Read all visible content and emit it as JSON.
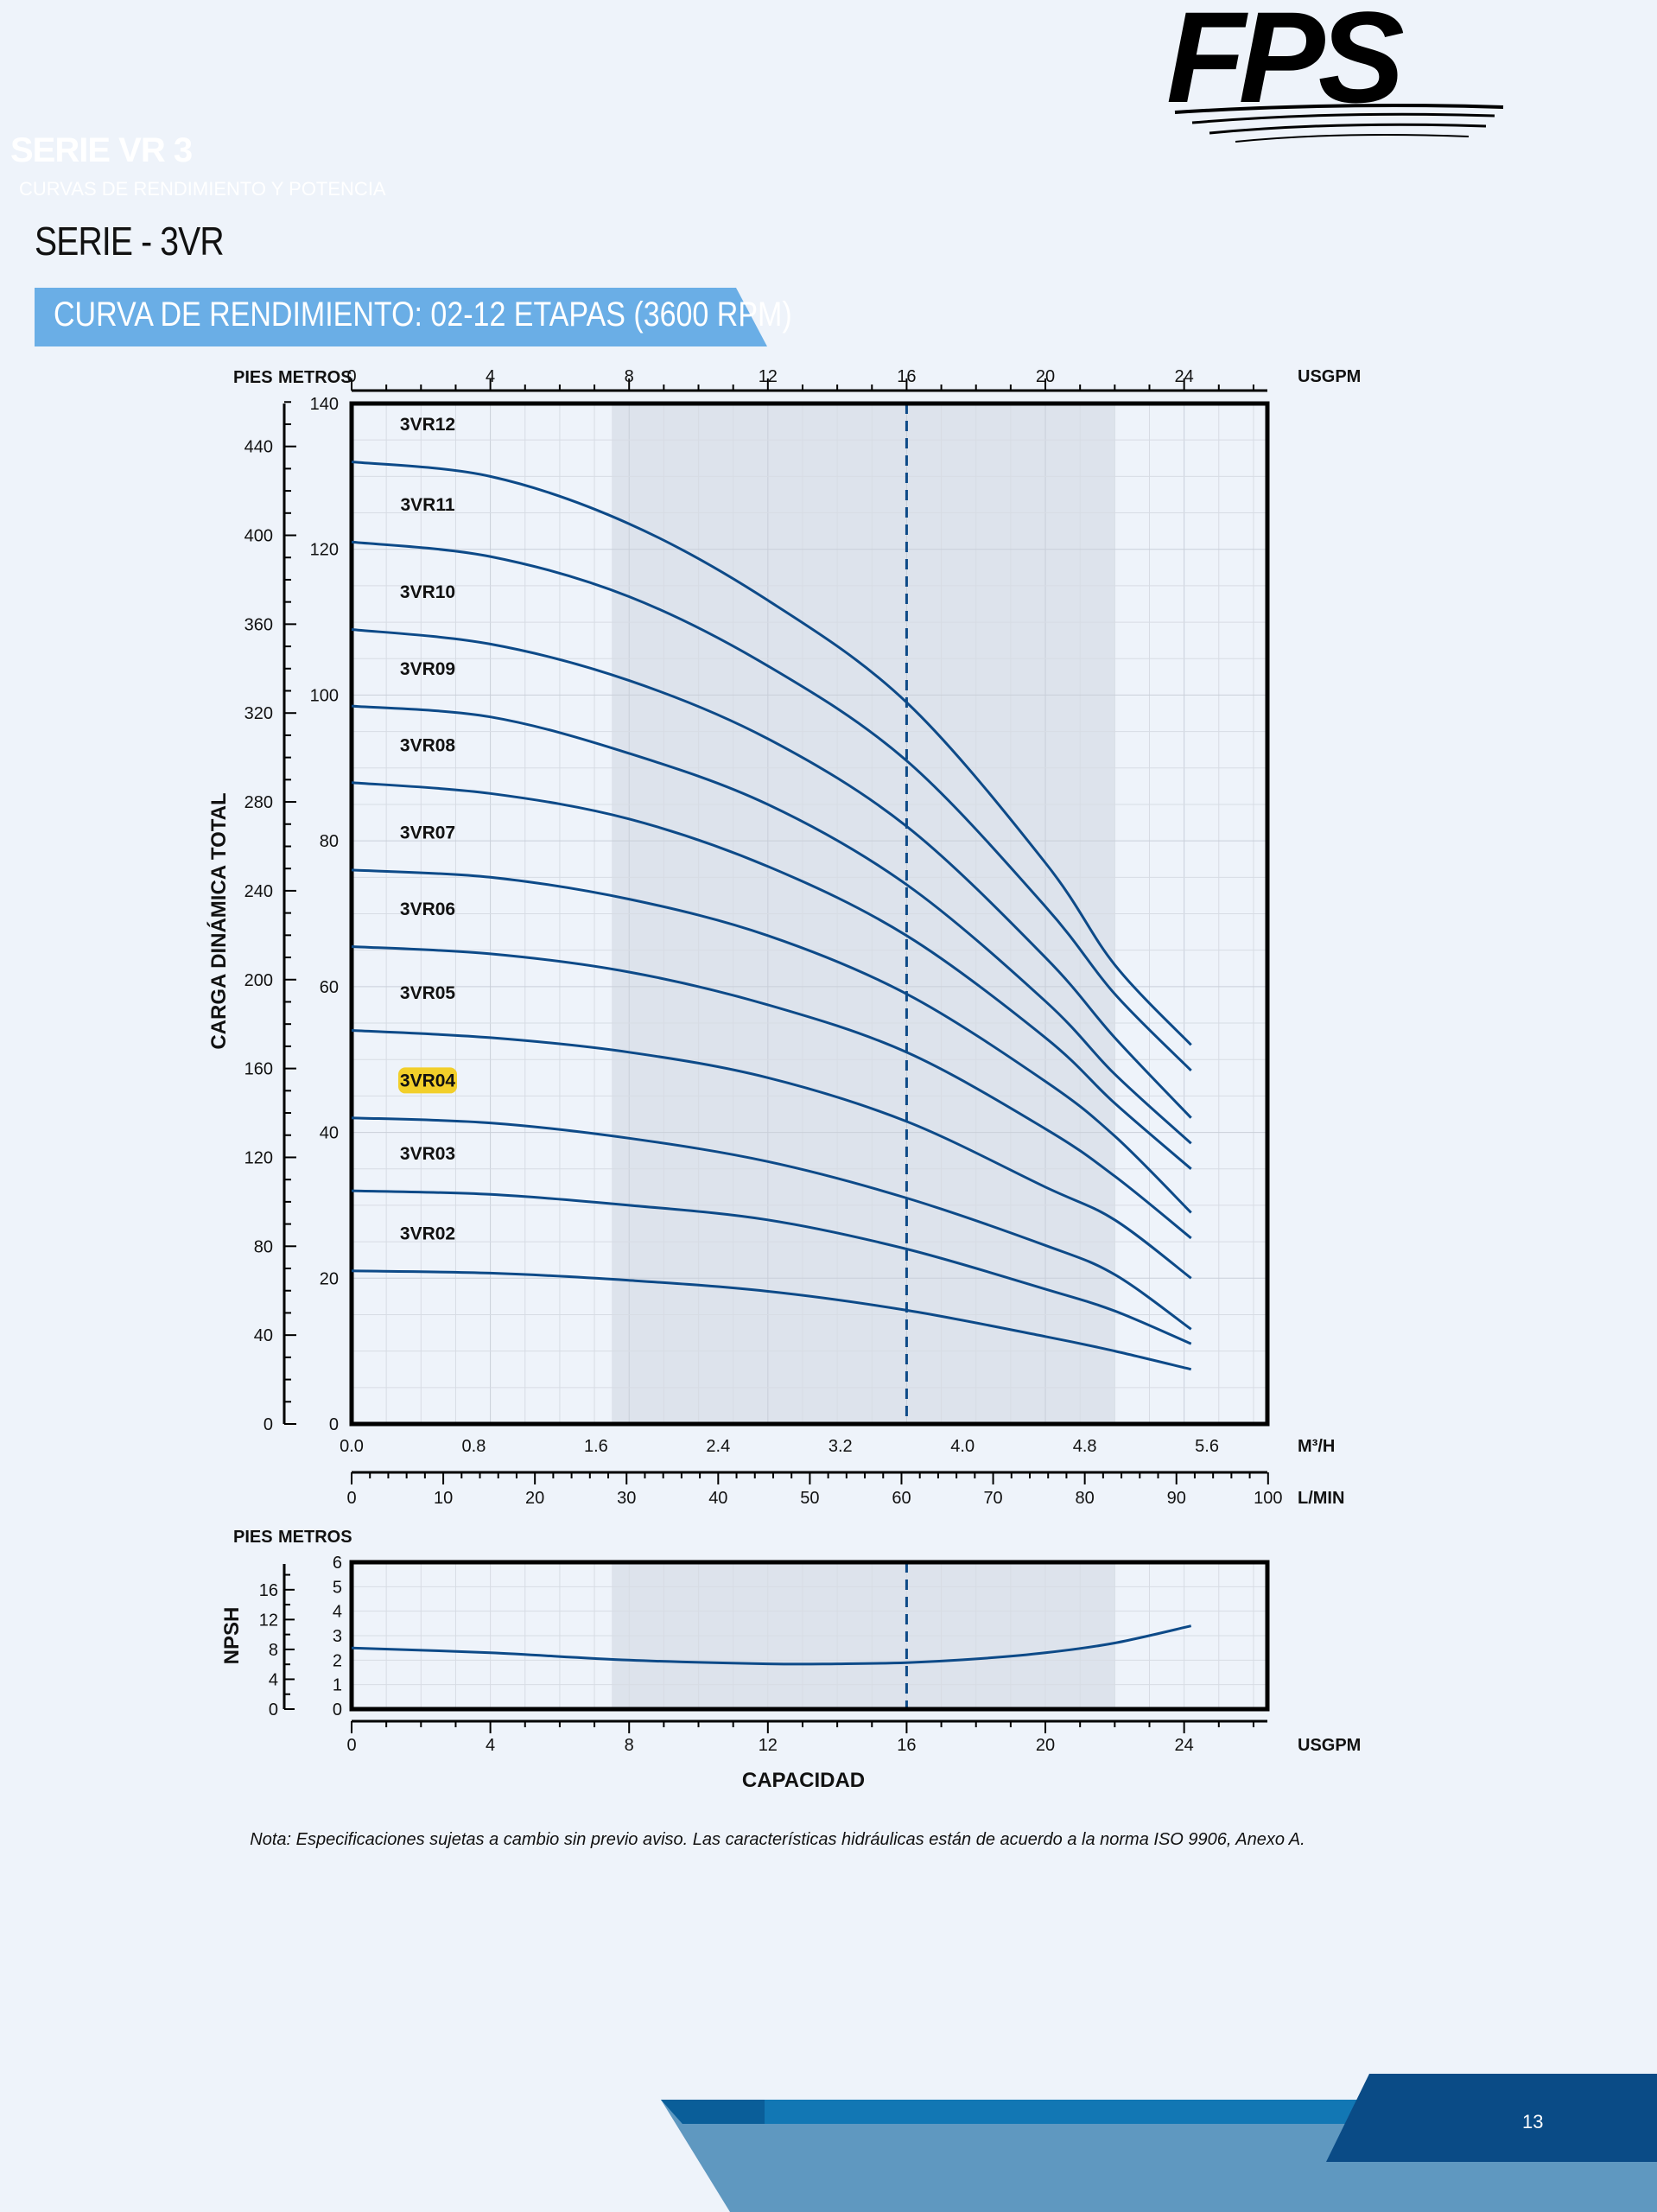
{
  "header": {
    "logo_text": "FPS",
    "series": "SERIE VR 3",
    "subseries": "CURVAS DE RENDIMIENTO Y POTENCIA",
    "page_title": "SERIE - 3VR",
    "banner": "CURVA DE RENDIMIENTO: 02-12 ETAPAS (3600 RPM)"
  },
  "footer": {
    "note": "Nota: Especificaciones sujetas a cambio sin previo aviso. Las características hidráulicas están de acuerdo a la norma ISO 9906, Anexo A.",
    "page_number": "13"
  },
  "colors": {
    "curve": "#0d4a88",
    "band": "#dde3ec",
    "banner": "#6aaee6",
    "highlight": "#f2cf2a",
    "footer_dark": "#0a4b86",
    "footer_mid": "#1277b4"
  },
  "chart_data": [
    {
      "type": "line",
      "title": "",
      "ylabel": "CARGA DINÁMICA TOTAL",
      "axes": {
        "top_unit": "USGPM",
        "top_ticks": [
          "0",
          "4",
          "8",
          "12",
          "16",
          "20",
          "24"
        ],
        "bottom_unit_1": "M³/H",
        "bottom_ticks_1": [
          "0.0",
          "0.8",
          "1.6",
          "2.4",
          "3.2",
          "4.0",
          "4.8",
          "5.6"
        ],
        "bottom_unit_2": "L/MIN",
        "bottom_ticks_2": [
          "0",
          "10",
          "20",
          "30",
          "40",
          "50",
          "60",
          "70",
          "80",
          "90",
          "100"
        ],
        "left_unit_1": "PIES",
        "left_ticks_1": [
          "0",
          "40",
          "80",
          "120",
          "160",
          "200",
          "240",
          "280",
          "320",
          "360",
          "400",
          "440"
        ],
        "left_unit_2": "METROS",
        "left_ticks_2": [
          "0",
          "20",
          "40",
          "60",
          "80",
          "100",
          "120",
          "140"
        ]
      },
      "xlim_usgpm": [
        0,
        26.4
      ],
      "ylim_m": [
        0,
        140
      ],
      "recommended_range_usgpm": [
        7.5,
        22
      ],
      "design_point_usgpm": 16,
      "highlighted_series": "3VR04",
      "series": [
        {
          "name": "3VR12",
          "x": [
            0,
            4,
            8,
            12,
            16,
            20,
            22,
            24.2
          ],
          "y": [
            132,
            130,
            123.5,
            113,
            99,
            77,
            63,
            52
          ]
        },
        {
          "name": "3VR11",
          "x": [
            0,
            4,
            8,
            12,
            16,
            20,
            22,
            24.2
          ],
          "y": [
            121,
            119,
            113.5,
            104,
            91,
            71,
            59,
            48.5
          ]
        },
        {
          "name": "3VR10",
          "x": [
            0,
            4,
            8,
            12,
            16,
            20,
            22,
            24.2
          ],
          "y": [
            109,
            107,
            102,
            94,
            82,
            64,
            53,
            42
          ]
        },
        {
          "name": "3VR09",
          "x": [
            0,
            4,
            8,
            12,
            16,
            20,
            22,
            24.2
          ],
          "y": [
            98.5,
            97,
            92,
            85,
            74,
            58,
            48,
            38.5
          ]
        },
        {
          "name": "3VR08",
          "x": [
            0,
            4,
            8,
            12,
            16,
            20,
            22,
            24.2
          ],
          "y": [
            88,
            86.5,
            83,
            76.5,
            67,
            53,
            44,
            35
          ]
        },
        {
          "name": "3VR07",
          "x": [
            0,
            4,
            8,
            12,
            16,
            20,
            22,
            24.2
          ],
          "y": [
            76,
            75,
            72,
            67,
            59,
            47,
            39.5,
            29
          ]
        },
        {
          "name": "3VR06",
          "x": [
            0,
            4,
            8,
            12,
            16,
            20,
            22,
            24.2
          ],
          "y": [
            65.5,
            64.5,
            62,
            57.5,
            51,
            40.5,
            34,
            25.5
          ]
        },
        {
          "name": "3VR05",
          "x": [
            0,
            4,
            8,
            12,
            16,
            20,
            22,
            24.2
          ],
          "y": [
            54,
            53,
            51,
            47.5,
            41.5,
            32.5,
            28,
            20
          ]
        },
        {
          "name": "3VR04",
          "x": [
            0,
            4,
            8,
            12,
            16,
            20,
            22,
            24.2
          ],
          "y": [
            42,
            41.3,
            39.2,
            36,
            31,
            24.5,
            20.5,
            13
          ]
        },
        {
          "name": "3VR03",
          "x": [
            0,
            4,
            8,
            12,
            16,
            20,
            22,
            24.2
          ],
          "y": [
            32,
            31.5,
            30,
            28,
            24,
            18.5,
            15.5,
            11
          ]
        },
        {
          "name": "3VR02",
          "x": [
            0,
            4,
            8,
            12,
            16,
            20,
            22,
            24.2
          ],
          "y": [
            21,
            20.7,
            19.7,
            18.2,
            15.6,
            12,
            10,
            7.5
          ]
        }
      ]
    },
    {
      "type": "line",
      "title": "",
      "ylabel": "NPSH",
      "xlabel": "CAPACIDAD",
      "axes": {
        "left_unit_1": "PIES",
        "left_ticks_1": [
          "0",
          "4",
          "8",
          "12",
          "16"
        ],
        "left_unit_2": "METROS",
        "left_ticks_2": [
          "0",
          "1",
          "2",
          "3",
          "4",
          "5",
          "6"
        ],
        "bottom_unit": "USGPM",
        "bottom_ticks": [
          "0",
          "4",
          "8",
          "12",
          "16",
          "20",
          "24"
        ]
      },
      "xlim_usgpm": [
        0,
        26.4
      ],
      "ylim_m": [
        0,
        6
      ],
      "series": [
        {
          "name": "NPSH",
          "x": [
            0,
            4,
            8,
            12,
            14,
            16,
            18,
            20,
            22,
            24.2
          ],
          "y": [
            2.5,
            2.3,
            2.0,
            1.85,
            1.85,
            1.9,
            2.05,
            2.3,
            2.7,
            3.4
          ]
        }
      ]
    }
  ]
}
